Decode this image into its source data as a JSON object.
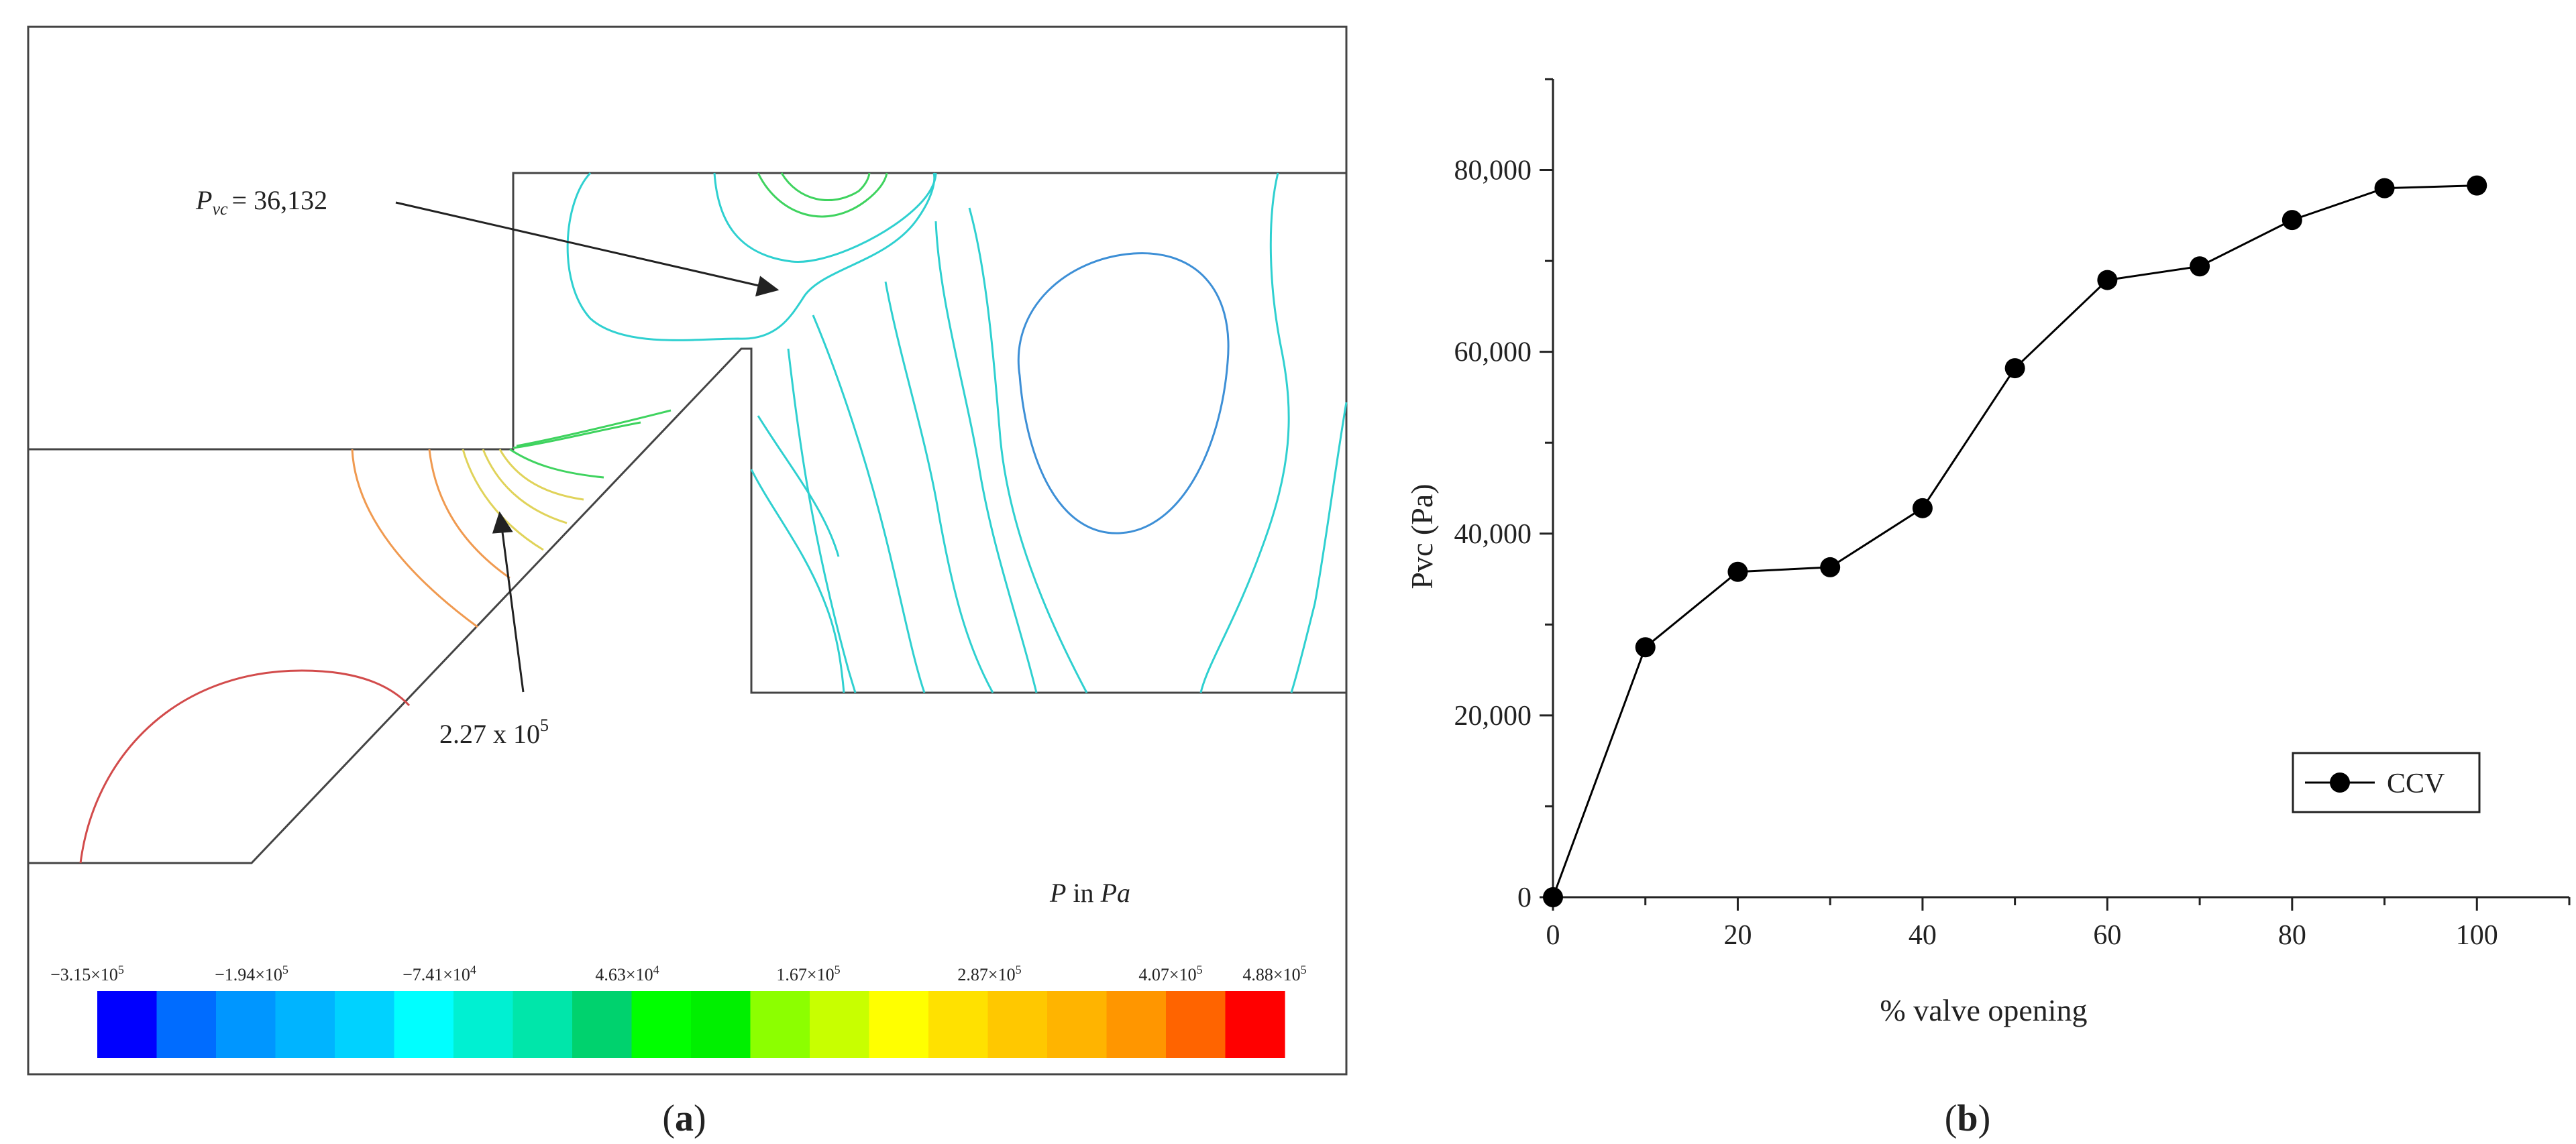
{
  "panel_a": {
    "label_prefix": "(",
    "label_letter": "a",
    "label_suffix": ")",
    "annotation_pvc": {
      "symbol": "P",
      "subscript": "vc",
      "value": "= 36,132"
    },
    "annotation_max": {
      "mantissa": "2.27 x 10",
      "exponent": "5"
    },
    "units": {
      "symbol": "P",
      "mid": " in ",
      "unit": "Pa"
    },
    "colorbar": {
      "labels": [
        "−3.15×10",
        "−1.94×10",
        "−7.41×10",
        "4.63×10",
        "1.67×10",
        "2.87×10",
        "4.07×10",
        "4.88×10"
      ],
      "exponents": [
        "5",
        "5",
        "4",
        "4",
        "5",
        "5",
        "5",
        "5"
      ],
      "colors": [
        "#0000ff",
        "#006cff",
        "#0096ff",
        "#00b4ff",
        "#00d2ff",
        "#00ffff",
        "#00f0d2",
        "#00e6aa",
        "#00d26e",
        "#00ff00",
        "#00f000",
        "#8cff00",
        "#c8ff00",
        "#ffff00",
        "#ffe100",
        "#ffc800",
        "#ffb400",
        "#ff9600",
        "#ff6400",
        "#ff0000"
      ]
    },
    "contour_colors": {
      "red": "#d24b4b",
      "orange": "#f09a50",
      "yellow": "#e0d35a",
      "green": "#3fd35f",
      "cyan": "#2fd0d0",
      "blue": "#3d8fd6"
    }
  },
  "panel_b": {
    "label_prefix": "(",
    "label_letter": "b",
    "label_suffix": ")",
    "chart_data": {
      "type": "line",
      "xlabel": "% valve opening",
      "ylabel": "Pvc (Pa)",
      "xlim": [
        0,
        110
      ],
      "ylim": [
        0,
        90000
      ],
      "xticks": [
        0,
        20,
        40,
        60,
        80,
        100
      ],
      "xtick_labels": [
        "0",
        "20",
        "40",
        "60",
        "80",
        "100"
      ],
      "yticks": [
        0,
        20000,
        40000,
        60000,
        80000
      ],
      "ytick_labels": [
        "0",
        "20,000",
        "40,000",
        "60,000",
        "80,000"
      ],
      "legend_position": "bottom-right",
      "series": [
        {
          "name": "CCV",
          "color": "#000000",
          "marker": "circle",
          "x": [
            0,
            10,
            20,
            30,
            40,
            50,
            60,
            70,
            80,
            90,
            100
          ],
          "y": [
            0,
            27500,
            35800,
            36300,
            42800,
            58200,
            67900,
            69400,
            74500,
            78000,
            78300
          ]
        }
      ]
    }
  }
}
